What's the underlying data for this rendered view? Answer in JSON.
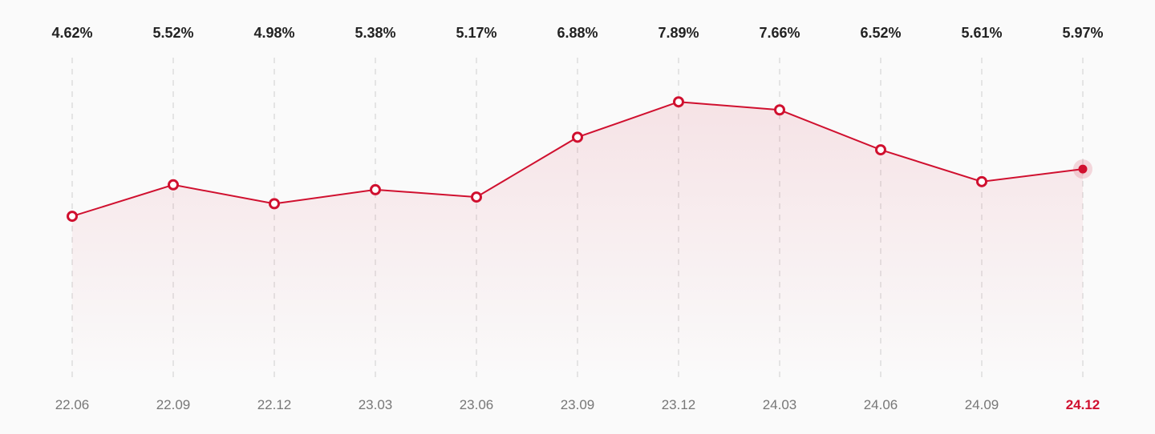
{
  "chart_data": {
    "type": "line",
    "categories": [
      "22.06",
      "22.09",
      "22.12",
      "23.03",
      "23.06",
      "23.09",
      "23.12",
      "24.03",
      "24.06",
      "24.09",
      "24.12"
    ],
    "values": [
      4.62,
      5.52,
      4.98,
      5.38,
      5.17,
      6.88,
      7.89,
      7.66,
      6.52,
      5.61,
      5.97
    ],
    "value_labels": [
      "4.62%",
      "5.52%",
      "4.98%",
      "5.38%",
      "5.17%",
      "6.88%",
      "7.89%",
      "7.66%",
      "6.52%",
      "5.61%",
      "5.97%"
    ],
    "highlight_category": "24.12",
    "title": "",
    "xlabel": "",
    "ylabel": "",
    "ylim": [
      0,
      11
    ],
    "grid": "vertical-dashed",
    "legend": "none",
    "colors": {
      "line": "#d0102f",
      "area": "#d0102f",
      "highlight": "#d0102f",
      "grid": "#dddddd",
      "value_text": "#222222",
      "tick_text": "#777777"
    }
  }
}
